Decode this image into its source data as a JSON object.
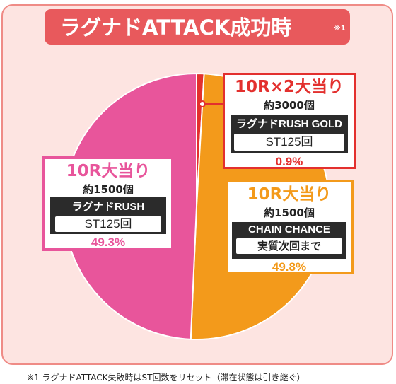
{
  "title": {
    "text": "ラグナドATTACK成功時",
    "note": "※1"
  },
  "colors": {
    "pink": "#e8559b",
    "orange": "#f39a1b",
    "red": "#e3302e",
    "title_bg": "#e8595c",
    "panel_bg": "#fde4e1"
  },
  "chart_data": {
    "type": "pie",
    "title": "ラグナドATTACK成功時",
    "slices": [
      {
        "heading": "10R×2大当り",
        "payout": "約3000個",
        "mode": "ラグナドRUSH GOLD",
        "detail": "ST125回",
        "label": "0.9%",
        "value": 0.9,
        "color": "#e3302e"
      },
      {
        "heading": "10R大当り",
        "payout": "約1500個",
        "mode": "CHAIN CHANCE",
        "detail": "実質次回まで",
        "label": "49.8%",
        "value": 49.8,
        "color": "#f39a1b"
      },
      {
        "heading": "10R大当り",
        "payout": "約1500個",
        "mode": "ラグナドRUSH",
        "detail": "ST125回",
        "label": "49.3%",
        "value": 49.3,
        "color": "#e8559b"
      }
    ]
  },
  "footnote": "※1 ラグナドATTACK失敗時はST回数をリセット（滞在状態は引き継ぐ）"
}
